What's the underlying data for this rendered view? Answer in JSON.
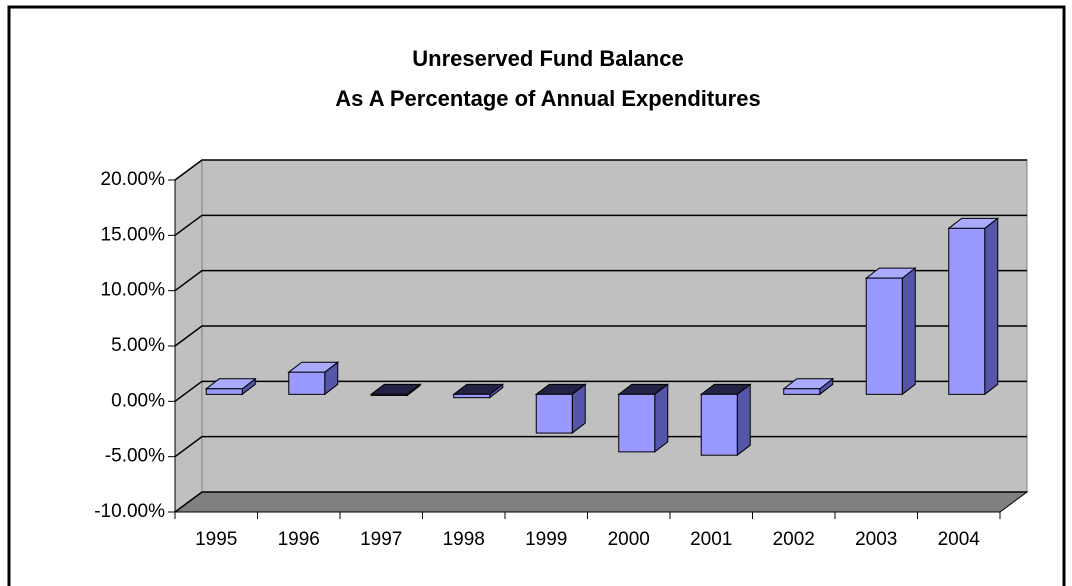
{
  "chart_data": {
    "type": "bar3d",
    "title": "Unreserved Fund Balance",
    "subtitle": "As A Percentage of Annual Expenditures",
    "categories": [
      "1995",
      "1996",
      "1997",
      "1998",
      "1999",
      "2000",
      "2001",
      "2002",
      "2003",
      "2004"
    ],
    "values": [
      0.5,
      2,
      -0.1,
      -0.3,
      -3.5,
      -5.2,
      -5.5,
      0.5,
      10.5,
      15
    ],
    "color": "#9999ff",
    "ylim": [
      -10,
      20
    ],
    "yticks": [
      {
        "value": -10,
        "label": "-10.00%"
      },
      {
        "value": -5,
        "label": "-5.00%"
      },
      {
        "value": 0,
        "label": "0.00%"
      },
      {
        "value": 5,
        "label": "5.00%"
      },
      {
        "value": 10,
        "label": "10.00%"
      },
      {
        "value": 15,
        "label": "15.00%"
      },
      {
        "value": 20,
        "label": "20.00%"
      }
    ],
    "grid": true
  }
}
